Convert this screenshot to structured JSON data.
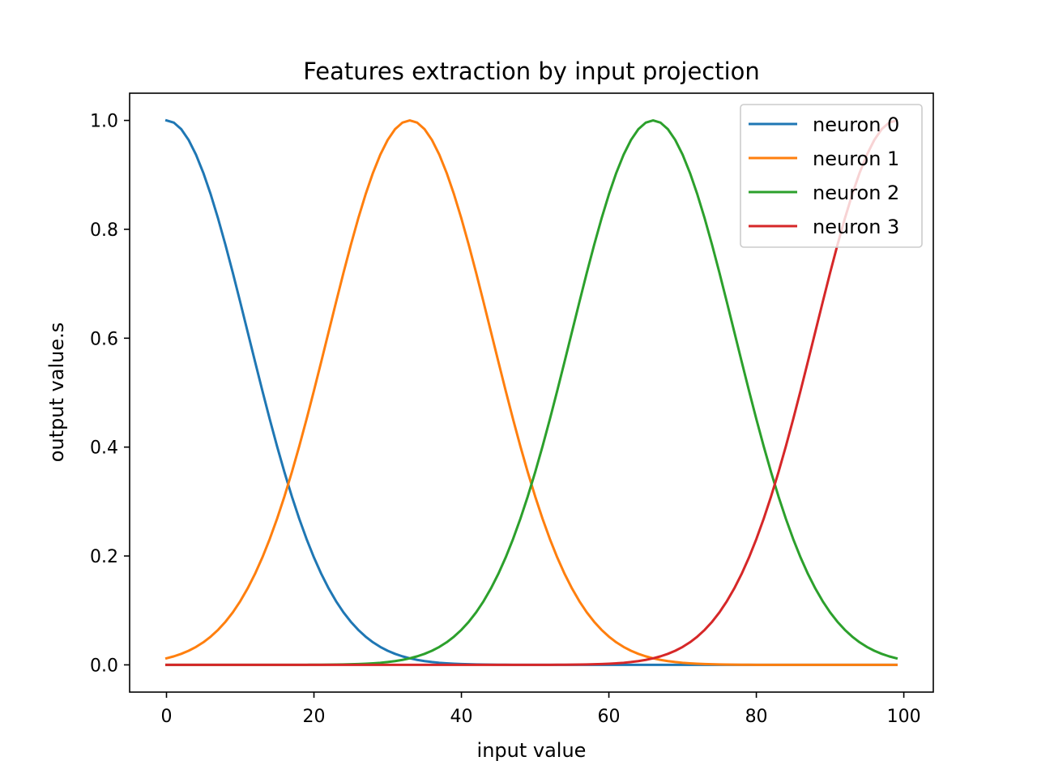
{
  "chart_data": {
    "type": "line",
    "title": "Features extraction by input projection",
    "xlabel": "input value",
    "ylabel": "output value.s",
    "xlim": [
      -5,
      104
    ],
    "ylim": [
      -0.05,
      1.05
    ],
    "xticks": [
      0,
      20,
      40,
      60,
      80,
      100
    ],
    "yticks": [
      0.0,
      0.2,
      0.4,
      0.6,
      0.8,
      1.0
    ],
    "ytick_labels": [
      "0.0",
      "0.2",
      "0.4",
      "0.6",
      "0.8",
      "1.0"
    ],
    "grid": false,
    "legend_position": "top-right",
    "series": [
      {
        "name": "neuron 0",
        "color": "#1f77b4",
        "center": 0,
        "sigma": 11.1
      },
      {
        "name": "neuron 1",
        "color": "#ff7f0e",
        "center": 33,
        "sigma": 11.1
      },
      {
        "name": "neuron 2",
        "color": "#2ca02c",
        "center": 66,
        "sigma": 11.1
      },
      {
        "name": "neuron 3",
        "color": "#d62728",
        "center": 99,
        "sigma": 11.1
      }
    ],
    "x": {
      "start": 0,
      "end": 99,
      "step": 1
    }
  }
}
